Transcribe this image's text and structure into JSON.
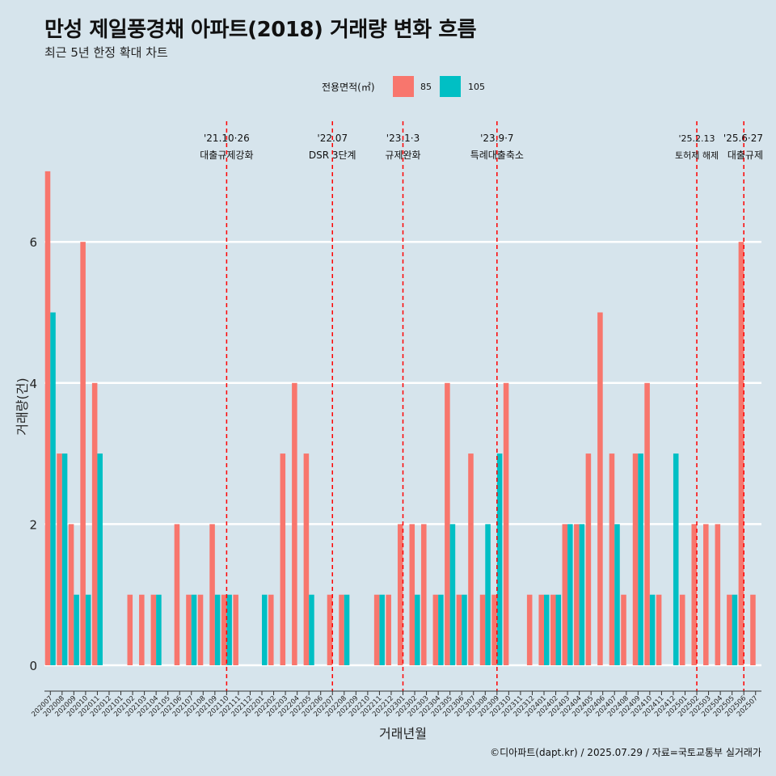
{
  "title": "만성 제일풍경채 아파트(2018) 거래량 변화 흐름",
  "subtitle": "최근 5년 한정 확대 차트",
  "caption": "©디아파트(dapt.kr) / 2025.07.29 / 자료=국토교통부 실거래가",
  "colors": {
    "s85": "#f8766d",
    "s105": "#00bfc4",
    "event": "#ff0000",
    "grid": "#ffffff",
    "background": "#d6e4ec"
  },
  "legend": {
    "title": "전용면적(㎡)",
    "items": [
      "85",
      "105"
    ]
  },
  "chart_data": {
    "type": "bar",
    "xlabel": "거래년월",
    "ylabel": "거래량(건)",
    "ylim": [
      0,
      7
    ],
    "yticks": [
      0,
      2,
      4,
      6
    ],
    "categories": [
      "202007",
      "202008",
      "202009",
      "202010",
      "202011",
      "202012",
      "202101",
      "202102",
      "202103",
      "202104",
      "202105",
      "202106",
      "202107",
      "202108",
      "202109",
      "202110",
      "202111",
      "202112",
      "202201",
      "202202",
      "202203",
      "202204",
      "202205",
      "202206",
      "202207",
      "202208",
      "202209",
      "202210",
      "202211",
      "202212",
      "202301",
      "202302",
      "202303",
      "202304",
      "202305",
      "202306",
      "202307",
      "202308",
      "202309",
      "202310",
      "202311",
      "202312",
      "202401",
      "202402",
      "202403",
      "202404",
      "202405",
      "202406",
      "202407",
      "202408",
      "202409",
      "202410",
      "202411",
      "202412",
      "202501",
      "202502",
      "202503",
      "202504",
      "202505",
      "202506",
      "202507"
    ],
    "series": [
      {
        "name": "85",
        "values": [
          7,
          3,
          2,
          6,
          4,
          0,
          0,
          1,
          1,
          1,
          0,
          2,
          1,
          1,
          2,
          1,
          1,
          0,
          0,
          1,
          3,
          4,
          3,
          0,
          1,
          1,
          0,
          0,
          1,
          1,
          2,
          2,
          2,
          1,
          4,
          1,
          3,
          1,
          1,
          4,
          0,
          1,
          1,
          1,
          2,
          2,
          3,
          5,
          3,
          1,
          3,
          4,
          1,
          0,
          1,
          2,
          2,
          2,
          1,
          6,
          1
        ]
      },
      {
        "name": "105",
        "values": [
          5,
          3,
          1,
          1,
          3,
          0,
          0,
          0,
          0,
          1,
          0,
          0,
          1,
          0,
          1,
          1,
          0,
          0,
          1,
          0,
          0,
          0,
          1,
          0,
          0,
          1,
          0,
          0,
          1,
          0,
          0,
          1,
          0,
          1,
          2,
          1,
          0,
          2,
          3,
          0,
          0,
          0,
          1,
          1,
          2,
          2,
          0,
          0,
          2,
          0,
          3,
          1,
          0,
          3,
          0,
          0,
          0,
          0,
          1,
          0,
          0
        ]
      }
    ],
    "events": [
      {
        "month": "202110",
        "date": "'21.10·26",
        "label": "대출규제강화"
      },
      {
        "month": "202207",
        "date": "'22.07",
        "label": "DSR 3단계"
      },
      {
        "month": "202301",
        "date": "'23.1·3",
        "label": "규제완화"
      },
      {
        "month": "202309",
        "date": "'23.9·7",
        "label": "특례대출축소"
      },
      {
        "month": "202502",
        "date": "'25.2.13",
        "label": "토허제 해제"
      },
      {
        "month": "202506",
        "date": "'25.6·27",
        "label": "대출규제"
      }
    ]
  }
}
